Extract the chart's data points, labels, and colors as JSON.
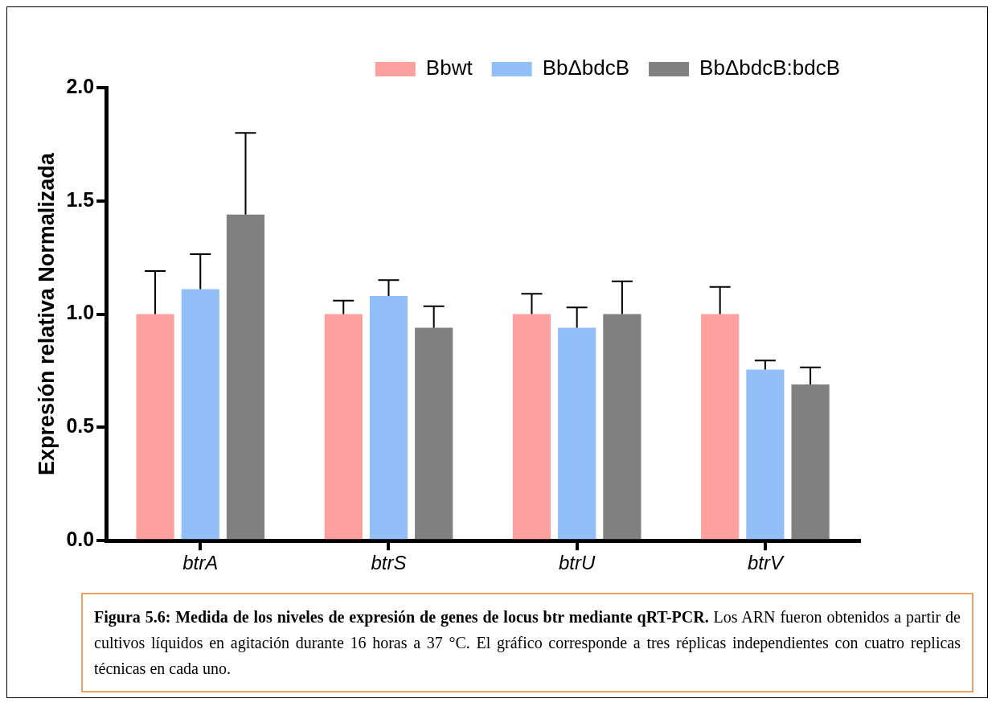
{
  "chart_data": {
    "type": "bar",
    "ylabel": "Expresión relativa Normalizada",
    "categories": [
      "btrA",
      "btrS",
      "btrU",
      "btrV"
    ],
    "series": [
      {
        "name": "Bbwt",
        "color": "#ffa0a0",
        "values": [
          1.0,
          1.0,
          1.0,
          1.0
        ],
        "errors": [
          [
            1.0,
            1.19
          ],
          [
            1.0,
            1.06
          ],
          [
            1.0,
            1.09
          ],
          [
            1.0,
            1.12
          ]
        ]
      },
      {
        "name": "BbΔbdcB",
        "color": "#92bff8",
        "values": [
          1.11,
          1.08,
          0.94,
          0.755
        ],
        "errors": [
          [
            1.11,
            1.265
          ],
          [
            1.08,
            1.15
          ],
          [
            0.94,
            1.03
          ],
          [
            0.755,
            0.795
          ]
        ]
      },
      {
        "name": "BbΔbdcB:bdcB",
        "color": "#808080",
        "values": [
          1.44,
          0.94,
          1.0,
          0.69
        ],
        "errors": [
          [
            1.44,
            1.8
          ],
          [
            0.94,
            1.035
          ],
          [
            1.0,
            1.145
          ],
          [
            0.69,
            0.765
          ]
        ]
      }
    ],
    "ylim": [
      0,
      2
    ],
    "yticks": [
      {
        "value": 0,
        "label": "0.0"
      },
      0.5,
      {
        "value": 1,
        "label": "1.0"
      },
      1.5,
      {
        "value": 2,
        "label": "2.0"
      }
    ],
    "grid": false,
    "legend": "top right",
    "annotations": [
      "Figura 5.6: Medida de los niveles de expresión de genes de locus btr mediante qRT-PCR.",
      "Los ARN fueron obtenidos a partir de cultivos líquidos en agitación durante 16 horas a 37 °C. El gráfico corresponde a tres réplicas independientes con cuatro replicas técnicas en cada uno."
    ]
  }
}
